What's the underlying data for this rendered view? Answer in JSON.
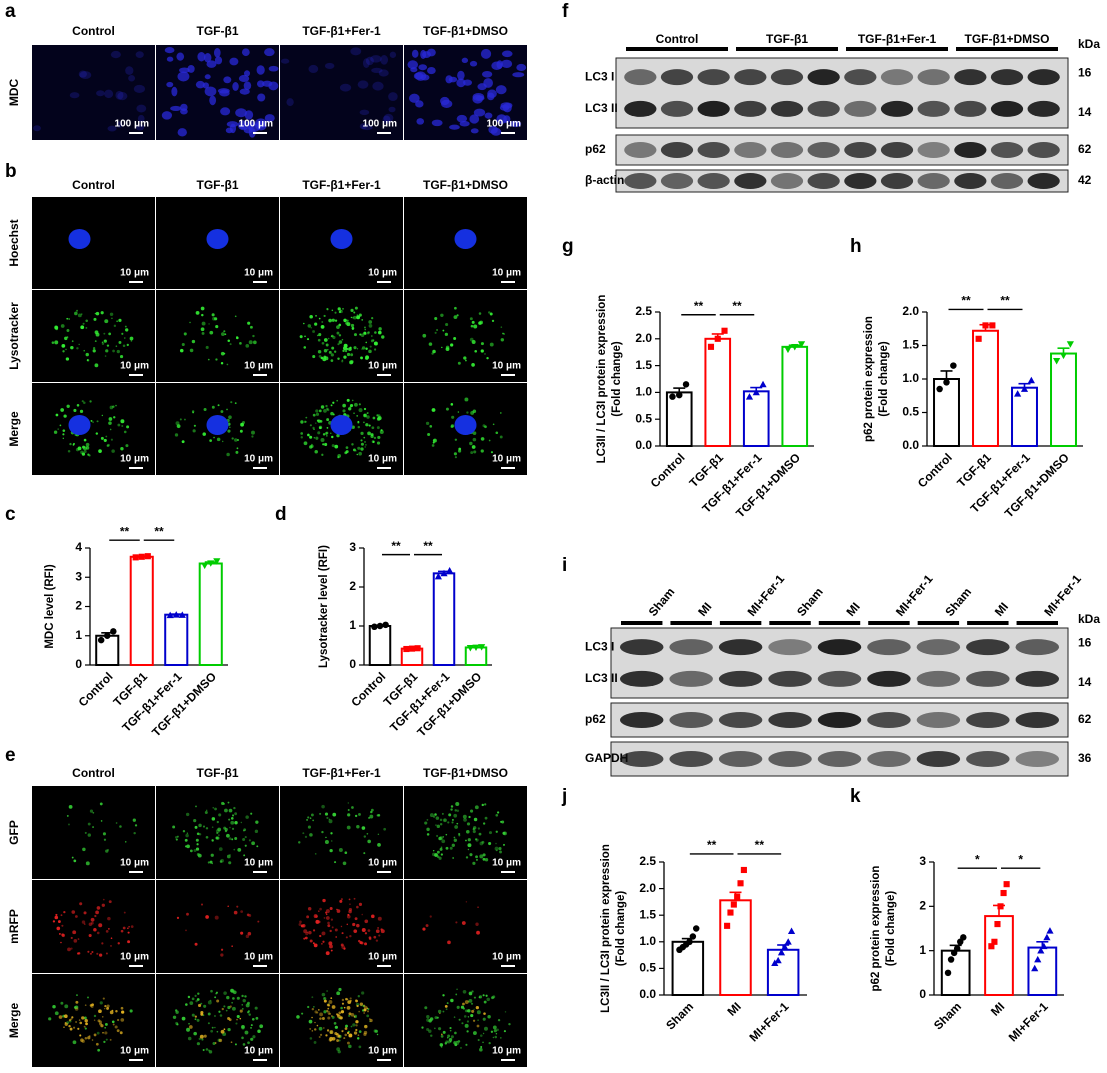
{
  "panels": {
    "a": {
      "label": "a",
      "columns": [
        "Control",
        "TGF-β1",
        "TGF-β1+Fer-1",
        "TGF-β1+DMSO"
      ],
      "rows": [
        "MDC"
      ],
      "scale_bar": "100 μm"
    },
    "b": {
      "label": "b",
      "columns": [
        "Control",
        "TGF-β1",
        "TGF-β1+Fer-1",
        "TGF-β1+DMSO"
      ],
      "rows": [
        "Hoechst",
        "Lysotracker",
        "Merge"
      ],
      "scale_bar": "10 μm"
    },
    "e": {
      "label": "e",
      "columns": [
        "Control",
        "TGF-β1",
        "TGF-β1+Fer-1",
        "TGF-β1+DMSO"
      ],
      "rows": [
        "GFP",
        "mRFP",
        "Merge"
      ],
      "scale_bar": "10 μm"
    },
    "f": {
      "label": "f",
      "groups": [
        "Control",
        "TGF-β1",
        "TGF-β1+Fer-1",
        "TGF-β1+DMSO"
      ],
      "unit": "kDa",
      "bands": [
        {
          "names": [
            "LC3 I",
            "LC3 II"
          ],
          "kda": [
            16,
            14
          ]
        },
        {
          "names": [
            "p62"
          ],
          "kda": [
            62
          ]
        },
        {
          "names": [
            "β-actin"
          ],
          "kda": [
            42
          ]
        }
      ]
    },
    "i": {
      "label": "i",
      "groups": [
        "Sham",
        "MI",
        "MI+Fer-1",
        "Sham",
        "MI",
        "MI+Fer-1",
        "Sham",
        "MI",
        "MI+Fer-1"
      ],
      "unit": "kDa",
      "bands": [
        {
          "names": [
            "LC3 I",
            "LC3 II"
          ],
          "kda": [
            16,
            14
          ]
        },
        {
          "names": [
            "p62"
          ],
          "kda": [
            62
          ]
        },
        {
          "names": [
            "GAPDH"
          ],
          "kda": [
            36
          ]
        }
      ]
    }
  },
  "chart_data": [
    {
      "type": "bar",
      "panel_label": "c",
      "ylabel": [
        "MDC level (RFI)"
      ],
      "categories": [
        "Control",
        "TGF-β1",
        "TGF-β1+Fer-1",
        "TGF-β1+DMSO"
      ],
      "colors": [
        "#000000",
        "#ff0000",
        "#0000cc",
        "#00cc00"
      ],
      "markers": [
        "circle",
        "square",
        "triangle",
        "triangle-down"
      ],
      "values": [
        1.0,
        3.7,
        1.72,
        3.47
      ],
      "errors": [
        0.1,
        0.02,
        0.02,
        0.05
      ],
      "points": [
        [
          0.85,
          1.0,
          1.15
        ],
        [
          3.68,
          3.7,
          3.72
        ],
        [
          1.7,
          1.72,
          1.71
        ],
        [
          3.4,
          3.48,
          3.55
        ]
      ],
      "ylim": [
        0,
        4
      ],
      "yticks": [
        0,
        1,
        2,
        3,
        4
      ],
      "brackets": [
        {
          "label": "**",
          "between": [
            "Control",
            "TGF-β1"
          ]
        },
        {
          "label": "**",
          "between": [
            "TGF-β1",
            "TGF-β1+Fer-1"
          ]
        }
      ]
    },
    {
      "type": "bar",
      "panel_label": "d",
      "ylabel": [
        "Lysotracker level (RFI)"
      ],
      "categories": [
        "Control",
        "TGF-β1",
        "TGF-β1+Fer-1",
        "TGF-β1+DMSO"
      ],
      "colors": [
        "#000000",
        "#ff0000",
        "#0000cc",
        "#00cc00"
      ],
      "markers": [
        "circle",
        "square",
        "triangle",
        "triangle-down"
      ],
      "values": [
        1.0,
        0.42,
        2.35,
        0.45
      ],
      "errors": [
        0.02,
        0.01,
        0.05,
        0.01
      ],
      "points": [
        [
          0.98,
          1.0,
          1.03
        ],
        [
          0.41,
          0.42,
          0.43
        ],
        [
          2.27,
          2.35,
          2.42
        ],
        [
          0.44,
          0.45,
          0.46
        ]
      ],
      "ylim": [
        0,
        3
      ],
      "yticks": [
        0,
        1,
        2,
        3
      ],
      "brackets": [
        {
          "label": "**",
          "between": [
            "Control",
            "TGF-β1"
          ]
        },
        {
          "label": "**",
          "between": [
            "TGF-β1",
            "TGF-β1+Fer-1"
          ]
        }
      ]
    },
    {
      "type": "bar",
      "panel_label": "g",
      "ylabel": [
        "LC3II / LC3I protein expression",
        "(Fold change)"
      ],
      "categories": [
        "Control",
        "TGF-β1",
        "TGF-β1+Fer-1",
        "TGF-β1+DMSO"
      ],
      "colors": [
        "#000000",
        "#ff0000",
        "#0000cc",
        "#00cc00"
      ],
      "markers": [
        "circle",
        "square",
        "triangle",
        "triangle-down"
      ],
      "values": [
        1.0,
        2.0,
        1.02,
        1.85
      ],
      "errors": [
        0.08,
        0.09,
        0.07,
        0.03
      ],
      "points": [
        [
          0.92,
          0.95,
          1.15
        ],
        [
          1.85,
          2.0,
          2.15
        ],
        [
          0.92,
          1.0,
          1.15
        ],
        [
          1.8,
          1.85,
          1.9
        ]
      ],
      "ylim": [
        0,
        2.5
      ],
      "yticks": [
        {
          "value": 0,
          "label": "0.0"
        },
        0.5,
        {
          "value": 1,
          "label": "1.0"
        },
        1.5,
        {
          "value": 2,
          "label": "2.0"
        },
        2.5
      ],
      "brackets": [
        {
          "label": "**",
          "between": [
            "Control",
            "TGF-β1"
          ]
        },
        {
          "label": "**",
          "between": [
            "TGF-β1",
            "TGF-β1+Fer-1"
          ]
        }
      ]
    },
    {
      "type": "bar",
      "panel_label": "h",
      "ylabel": [
        "p62 protein expression",
        "(Fold change)"
      ],
      "categories": [
        "Control",
        "TGF-β1",
        "TGF-β1+Fer-1",
        "TGF-β1+DMSO"
      ],
      "colors": [
        "#000000",
        "#ff0000",
        "#0000cc",
        "#00cc00"
      ],
      "markers": [
        "circle",
        "square",
        "triangle",
        "triangle-down"
      ],
      "values": [
        1.0,
        1.72,
        0.87,
        1.38
      ],
      "errors": [
        0.12,
        0.09,
        0.06,
        0.08
      ],
      "points": [
        [
          0.85,
          0.95,
          1.2
        ],
        [
          1.6,
          1.8,
          1.8
        ],
        [
          0.78,
          0.85,
          0.98
        ],
        [
          1.27,
          1.35,
          1.52
        ]
      ],
      "ylim": [
        0,
        2
      ],
      "yticks": [
        {
          "value": 0,
          "label": "0.0"
        },
        0.5,
        {
          "value": 1,
          "label": "1.0"
        },
        1.5,
        {
          "value": 2,
          "label": "2.0"
        }
      ],
      "brackets": [
        {
          "label": "**",
          "between": [
            "Control",
            "TGF-β1"
          ]
        },
        {
          "label": "**",
          "between": [
            "TGF-β1",
            "TGF-β1+Fer-1"
          ]
        }
      ]
    },
    {
      "type": "bar",
      "panel_label": "j",
      "ylabel": [
        "LC3II / LC3I protein expression",
        "(Fold change)"
      ],
      "categories": [
        "Sham",
        "MI",
        "MI+Fer-1"
      ],
      "colors": [
        "#000000",
        "#ff0000",
        "#0000cc"
      ],
      "markers": [
        "circle",
        "square",
        "triangle"
      ],
      "values": [
        1.0,
        1.78,
        0.85
      ],
      "errors": [
        0.06,
        0.15,
        0.09
      ],
      "points": [
        [
          0.85,
          0.9,
          0.95,
          1.0,
          1.1,
          1.25
        ],
        [
          1.3,
          1.55,
          1.7,
          1.85,
          2.1,
          2.35
        ],
        [
          0.6,
          0.65,
          0.8,
          0.9,
          1.0,
          1.2
        ]
      ],
      "ylim": [
        0,
        2.5
      ],
      "yticks": [
        {
          "value": 0,
          "label": "0.0"
        },
        0.5,
        {
          "value": 1,
          "label": "1.0"
        },
        1.5,
        {
          "value": 2,
          "label": "2.0"
        },
        2.5
      ],
      "brackets": [
        {
          "label": "**",
          "between": [
            "Sham",
            "MI"
          ]
        },
        {
          "label": "**",
          "between": [
            "MI",
            "MI+Fer-1"
          ]
        }
      ]
    },
    {
      "type": "bar",
      "panel_label": "k",
      "ylabel": [
        "p62 protein expression",
        "(Fold change)"
      ],
      "categories": [
        "Sham",
        "MI",
        "MI+Fer-1"
      ],
      "colors": [
        "#000000",
        "#ff0000",
        "#0000cc"
      ],
      "markers": [
        "circle",
        "square",
        "triangle"
      ],
      "values": [
        1.0,
        1.78,
        1.07
      ],
      "errors": [
        0.12,
        0.24,
        0.13
      ],
      "points": [
        [
          0.5,
          0.8,
          0.95,
          1.05,
          1.2,
          1.3
        ],
        [
          1.1,
          1.2,
          1.6,
          2.0,
          2.3,
          2.5
        ],
        [
          0.6,
          0.8,
          1.0,
          1.1,
          1.3,
          1.45
        ]
      ],
      "ylim": [
        0,
        3
      ],
      "yticks": [
        0,
        1,
        2,
        3
      ],
      "brackets": [
        {
          "label": "*",
          "between": [
            "Sham",
            "MI"
          ]
        },
        {
          "label": "*",
          "between": [
            "MI",
            "MI+Fer-1"
          ]
        }
      ]
    }
  ]
}
